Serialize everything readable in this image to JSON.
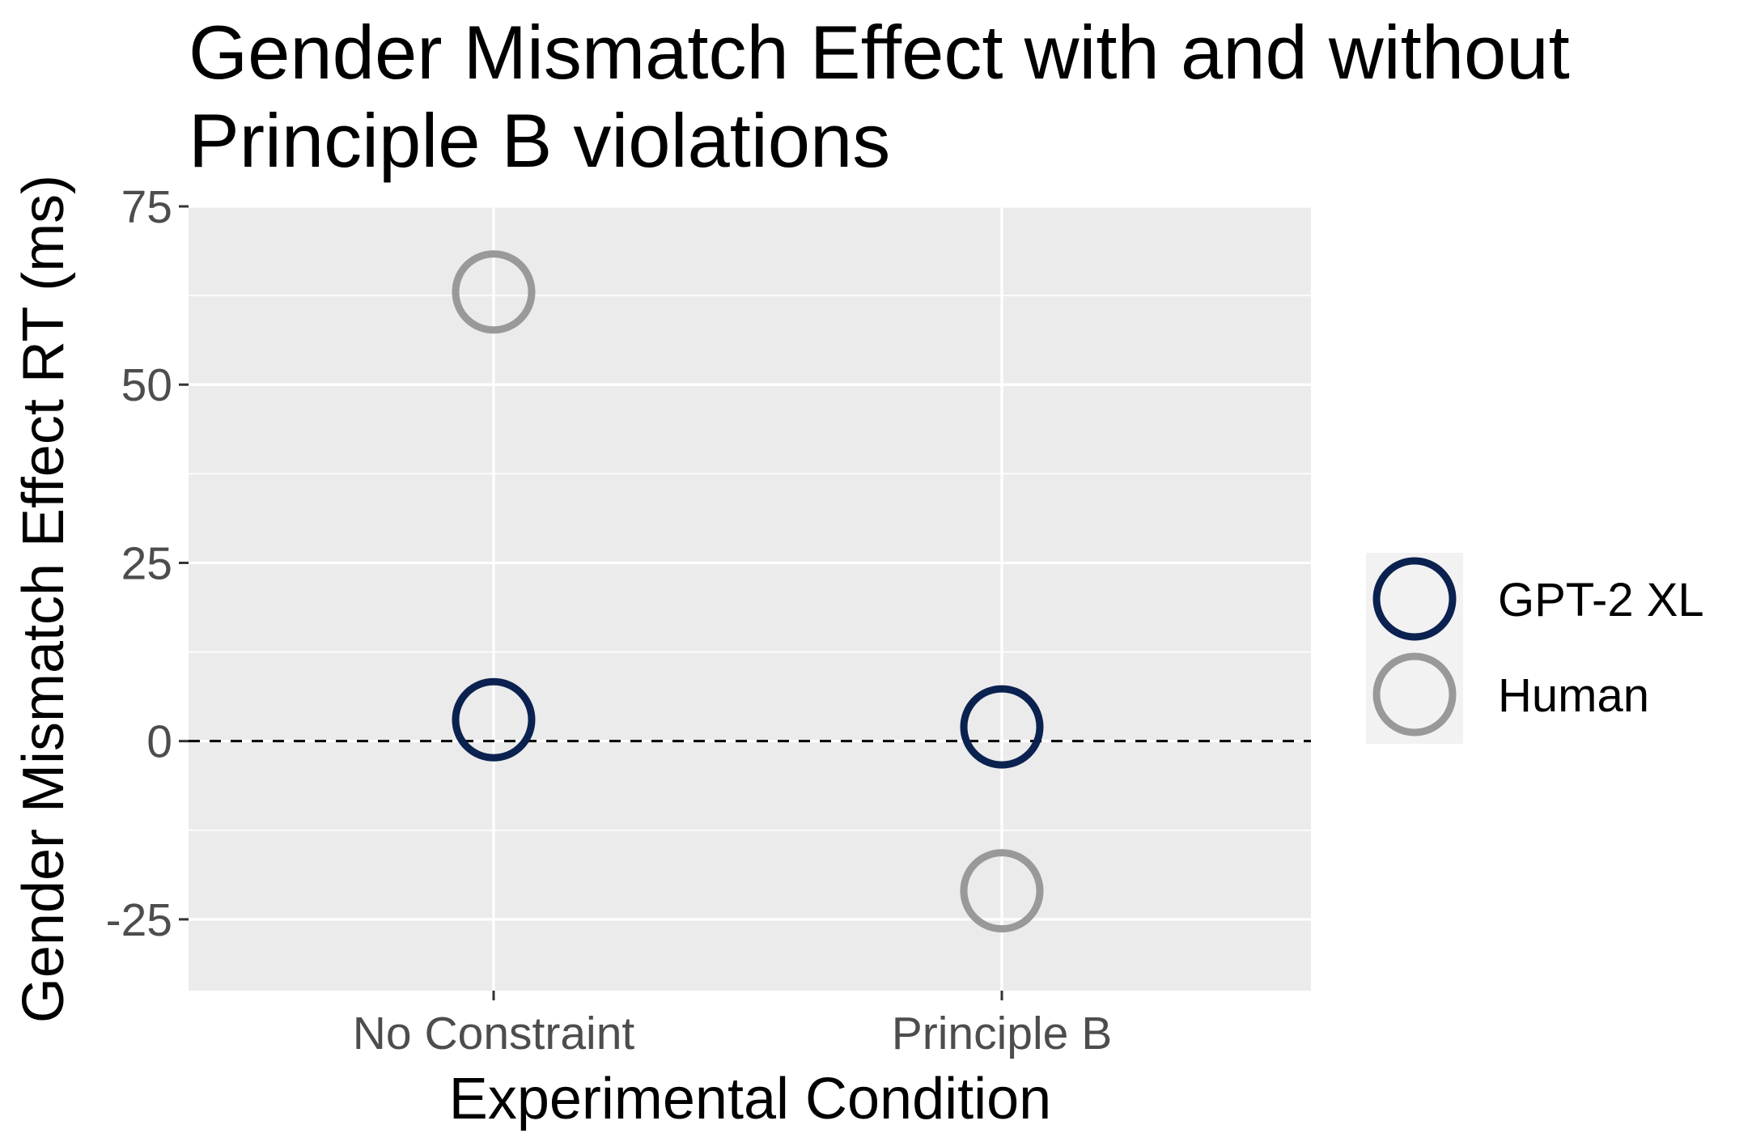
{
  "chart_data": {
    "type": "scatter",
    "title_lines": [
      "Gender Mismatch Effect with and without",
      "Principle B violations"
    ],
    "xlabel": "Experimental Condition",
    "ylabel": "Gender Mismatch Effect RT (ms)",
    "categories": [
      "No Constraint",
      "Principle B"
    ],
    "ylim": [
      -35,
      75
    ],
    "yticks": [
      75,
      50,
      25,
      0,
      -25
    ],
    "ytick_labels": [
      "75",
      "50",
      "25",
      "0",
      "-25"
    ],
    "reference_line": {
      "y": 0,
      "style": "dashed"
    },
    "grid": true,
    "legend_position": "right",
    "series": [
      {
        "name": "GPT-2 XL",
        "color": "#0b2250",
        "values": [
          3,
          2
        ]
      },
      {
        "name": "Human",
        "color": "#999999",
        "values": [
          63,
          -21
        ]
      }
    ]
  }
}
